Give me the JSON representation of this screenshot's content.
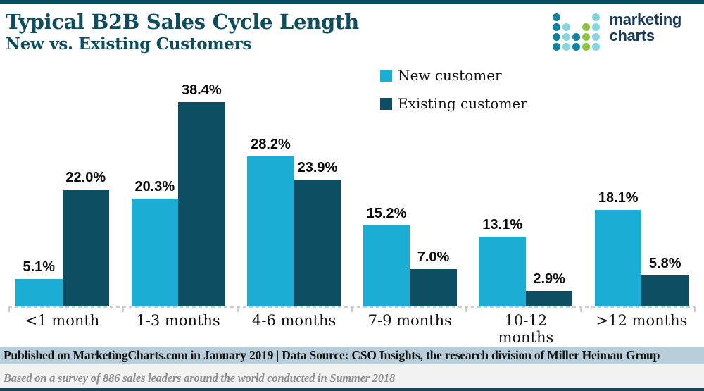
{
  "header": {
    "title": "Typical B2B Sales Cycle Length",
    "subtitle": "New vs. Existing Customers"
  },
  "logo": {
    "line1": "marketing",
    "line2": "charts",
    "dot_colors": {
      "teal": "#0b81a3",
      "cyan": "#82d7e0",
      "green": "#8cc640"
    },
    "dot_grid": [
      [
        "teal",
        null,
        null,
        null,
        "cyan"
      ],
      [
        "teal",
        "cyan",
        null,
        "green",
        "cyan"
      ],
      [
        "teal",
        "cyan",
        "teal",
        "green",
        "cyan"
      ],
      [
        "teal",
        "cyan",
        "teal",
        "green",
        "cyan"
      ]
    ]
  },
  "chart_data": {
    "type": "bar",
    "title": "Typical B2B Sales Cycle Length",
    "subtitle": "New vs. Existing Customers",
    "categories": [
      "<1 month",
      "1-3 months",
      "4-6 months",
      "7-9 months",
      "10-12 months",
      ">12 months"
    ],
    "series": [
      {
        "name": "New customer",
        "color": "#1badd3",
        "values": [
          5.1,
          20.3,
          28.2,
          15.2,
          13.1,
          18.1
        ]
      },
      {
        "name": "Existing customer",
        "color": "#0d4e63",
        "values": [
          22.0,
          38.4,
          23.9,
          7.0,
          2.9,
          5.8
        ]
      }
    ],
    "value_suffix": "%",
    "ylim": [
      0,
      40
    ],
    "grid": false,
    "legend_position": "top-right",
    "value_labels_shown": true
  },
  "footer": {
    "publication": "Published on MarketingCharts.com in January 2019 | Data Source: CSO Insights, the research division of Miller Heiman Group",
    "note": "Based on a survey of 886 sales leaders around the world conducted in Summer 2018"
  },
  "colors": {
    "accent_border": "#0d4a5e",
    "title_text": "#0e4c60",
    "new_customer_bar": "#1badd3",
    "existing_customer_bar": "#0d4e63",
    "publication_band_bg": "#b8cedb",
    "note_bg": "#f2f2f2",
    "note_text": "#8c8c8c",
    "axis_dash": "#cccccc",
    "logo_text": "#17395a"
  }
}
